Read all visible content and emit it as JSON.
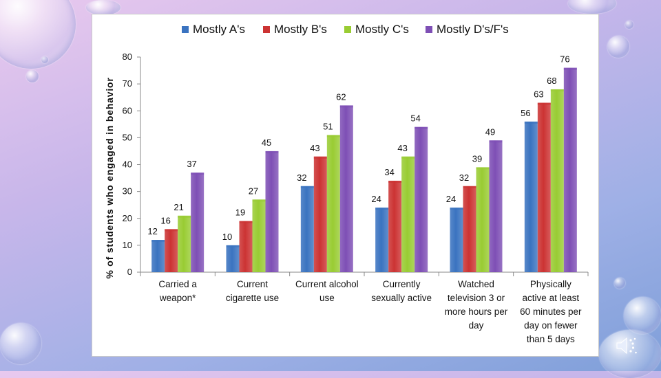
{
  "chart_data": {
    "type": "bar",
    "title": "",
    "xlabel": "",
    "ylabel": "% of students who engaged in behavior",
    "ylim": [
      0,
      80
    ],
    "yticks": [
      0,
      10,
      20,
      30,
      40,
      50,
      60,
      70,
      80
    ],
    "grid": false,
    "legend_position": "top",
    "categories": [
      [
        "Carried a",
        "weapon*"
      ],
      [
        "Current",
        "cigarette use"
      ],
      [
        "Current alcohol",
        "use"
      ],
      [
        "Currently",
        "sexually active"
      ],
      [
        "Watched",
        "television 3 or",
        "more hours per",
        "day"
      ],
      [
        "Physically",
        "active at least",
        "60 minutes per",
        "day on fewer",
        "than 5 days"
      ]
    ],
    "series": [
      {
        "name": "Mostly A's",
        "color": "#3a73c0",
        "values": [
          12,
          10,
          32,
          24,
          24,
          56
        ]
      },
      {
        "name": "Mostly B's",
        "color": "#cc3333",
        "values": [
          16,
          19,
          43,
          34,
          32,
          63
        ]
      },
      {
        "name": "Mostly C's",
        "color": "#99cc33",
        "values": [
          21,
          27,
          51,
          43,
          39,
          68
        ]
      },
      {
        "name": "Mostly D's/F's",
        "color": "#7e4fb5",
        "values": [
          37,
          45,
          62,
          54,
          49,
          76
        ]
      }
    ]
  }
}
